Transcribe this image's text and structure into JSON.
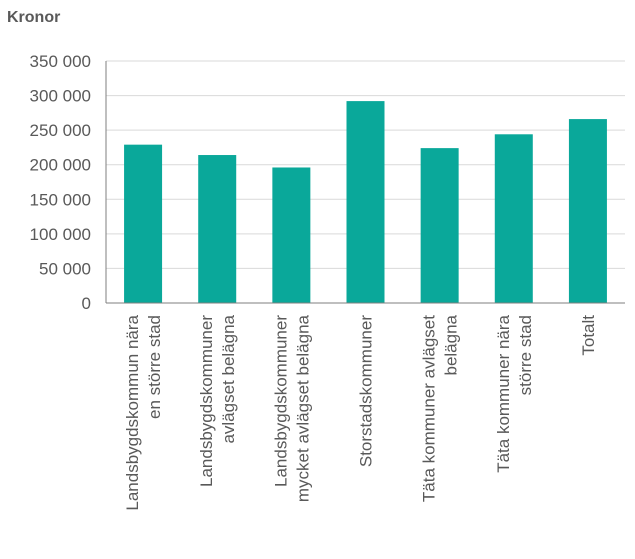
{
  "chart_data": {
    "type": "bar",
    "unit_label": "Kronor",
    "categories": [
      [
        "Landsbygdskommun nära",
        "en större stad"
      ],
      [
        "Landsbygdskommuner",
        "avlägset belägna"
      ],
      [
        "Landsbygdskommuner",
        "mycket avlägset belägna"
      ],
      [
        "Storstadskommuner"
      ],
      [
        "Täta kommuner avlägset",
        "belägna"
      ],
      [
        "Täta kommuner nära",
        "större stad"
      ],
      [
        "Totalt"
      ]
    ],
    "values": [
      229000,
      214000,
      196000,
      292000,
      224000,
      244000,
      266000
    ],
    "ylim": [
      0,
      350000
    ],
    "yticks": [
      0,
      50000,
      100000,
      150000,
      200000,
      250000,
      300000,
      350000
    ],
    "ytick_labels": [
      "0",
      "50 000",
      "100 000",
      "150 000",
      "200 000",
      "250 000",
      "300 000",
      "350 000"
    ],
    "bar_color": "#0aa89a",
    "grid": true,
    "legend": "none"
  }
}
